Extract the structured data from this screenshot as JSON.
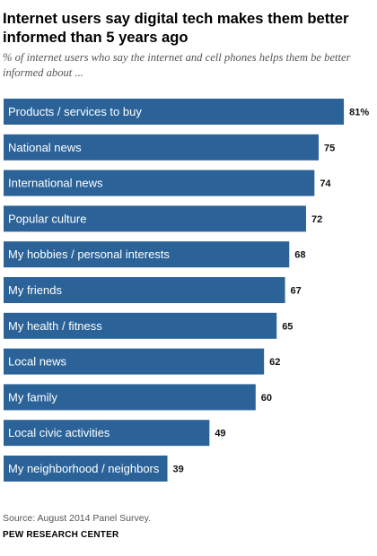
{
  "header": {
    "title": "Internet users say digital tech makes them better informed than 5 years ago",
    "subtitle": "% of internet users who say the internet and cell phones helps them be better informed about ..."
  },
  "footer": {
    "source": "Source: August 2014 Panel Survey.",
    "organization": "PEW RESEARCH CENTER"
  },
  "colors": {
    "bar": "#2b6399"
  },
  "chart_data": {
    "type": "bar",
    "orientation": "horizontal",
    "title": "Internet users say digital tech makes them better informed than 5 years ago",
    "subtitle": "% of internet users who say the internet and cell phones helps them be better informed about ...",
    "categories": [
      "Products / services to buy",
      "National news",
      "International news",
      "Popular culture",
      "My hobbies / personal interests",
      "My friends",
      "My health / fitness",
      "Local news",
      "My family",
      "Local civic activities",
      "My neighborhood / neighbors"
    ],
    "values": [
      81,
      75,
      74,
      72,
      68,
      67,
      65,
      62,
      60,
      49,
      39
    ],
    "value_labels": [
      "81%",
      "75",
      "74",
      "72",
      "68",
      "67",
      "65",
      "62",
      "60",
      "49",
      "39"
    ],
    "xlim": [
      0,
      100
    ],
    "grid": false,
    "legend": "none"
  }
}
